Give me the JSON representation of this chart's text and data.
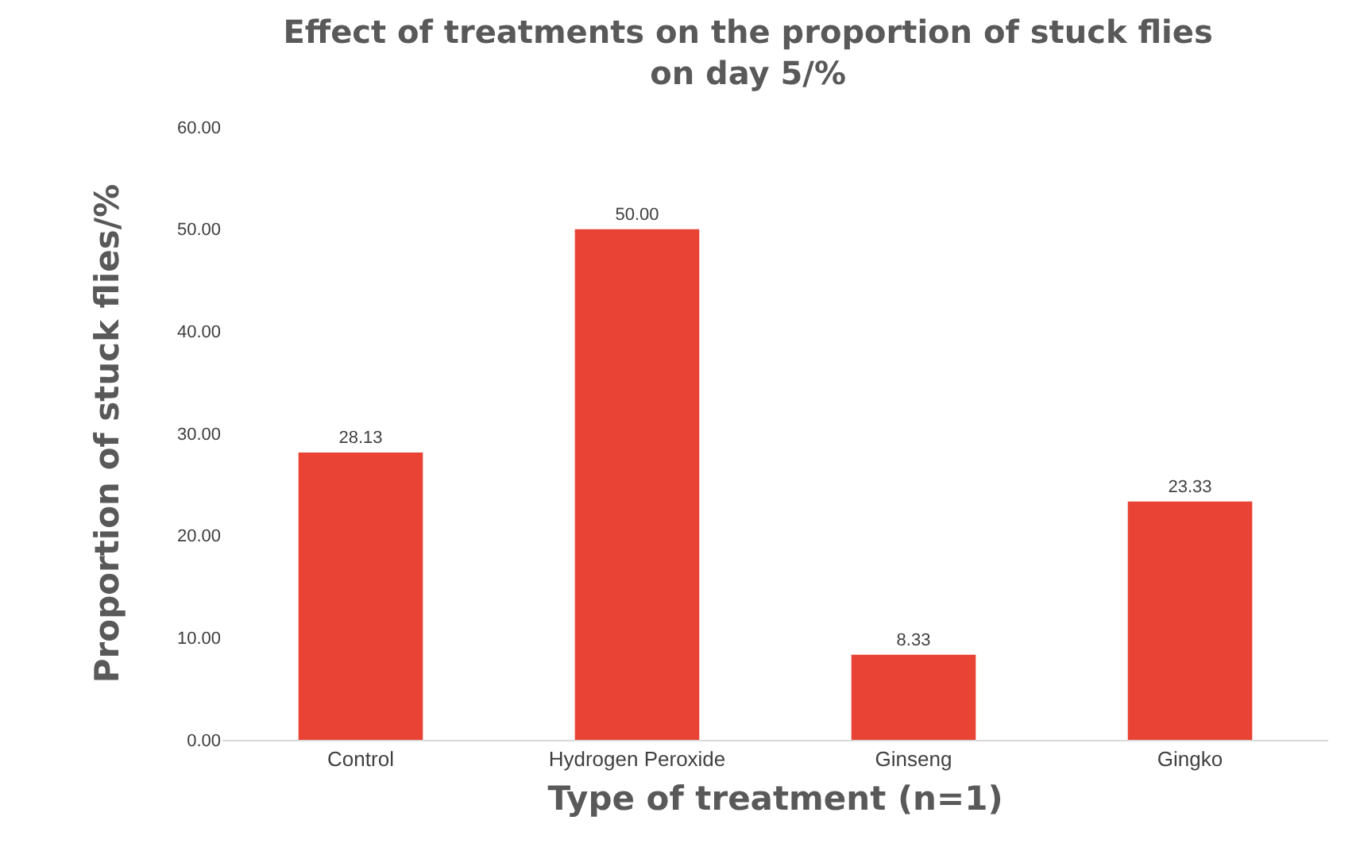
{
  "chart_data": {
    "type": "bar",
    "title": "Effect of treatments on the proportion of stuck flies\non day 5/%",
    "xlabel": "Type of treatment (n=1)",
    "ylabel": "Proportion of stuck flies/%",
    "categories": [
      "Control",
      "Hydrogen Peroxide",
      "Ginseng",
      "Gingko"
    ],
    "values": [
      28.13,
      50,
      8.33,
      23.33
    ],
    "value_labels": [
      "28.13",
      "50.00",
      "8.33",
      "23.33"
    ],
    "color": "#e84335",
    "ylim": [
      0,
      60
    ],
    "yticks": [
      {
        "value": 0,
        "label": "0.00"
      },
      {
        "value": 10,
        "label": "10.00"
      },
      {
        "value": 20,
        "label": "20.00"
      },
      {
        "value": 30,
        "label": "30.00"
      },
      {
        "value": 40,
        "label": "40.00"
      },
      {
        "value": 50,
        "label": "50.00"
      },
      {
        "value": 60,
        "label": "60.00"
      }
    ],
    "grid": false
  }
}
